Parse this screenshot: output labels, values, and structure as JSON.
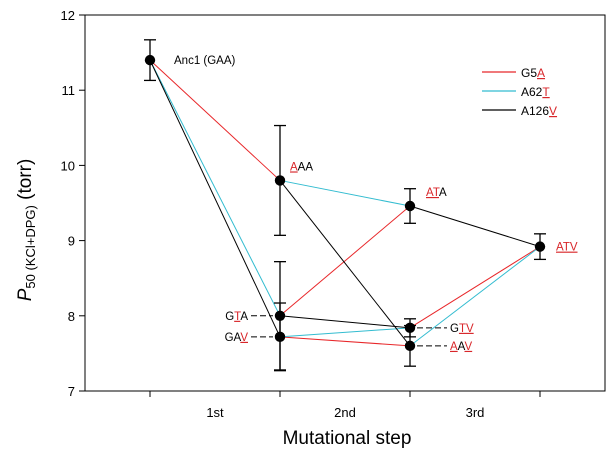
{
  "chart_data": {
    "type": "line",
    "xlabel": "Mutational step",
    "ylabel_main": "P",
    "ylabel_sub": "50 (KCl+DPG)",
    "ylabel_unit": " (torr)",
    "ylim": [
      7,
      12
    ],
    "yticks": [
      7,
      8,
      9,
      10,
      11,
      12
    ],
    "xlim": [
      -0.5,
      3.5
    ],
    "xticks": [
      0,
      1,
      2,
      3
    ],
    "xtick_labels": [
      {
        "text": "1st",
        "x": 0.5
      },
      {
        "text": "2nd",
        "x": 1.5
      },
      {
        "text": "3rd",
        "x": 2.5
      }
    ],
    "colors": {
      "red": "#e8272a",
      "cyan": "#33bcd0",
      "black": "#000000",
      "highlight": "#d8262a"
    },
    "points": [
      {
        "id": "GAA",
        "x": 0,
        "y": 11.4,
        "err": 0.27
      },
      {
        "id": "AAA",
        "x": 1,
        "y": 9.8,
        "err": 0.73
      },
      {
        "id": "GTA",
        "x": 1,
        "y": 8.0,
        "err": 0.72
      },
      {
        "id": "GAV",
        "x": 1,
        "y": 7.72,
        "err": 0.45
      },
      {
        "id": "ATA",
        "x": 2,
        "y": 9.46,
        "err": 0.23
      },
      {
        "id": "GTV",
        "x": 2,
        "y": 7.84,
        "err": 0.12
      },
      {
        "id": "AAV",
        "x": 2,
        "y": 7.6,
        "err": 0.27
      },
      {
        "id": "ATV",
        "x": 3,
        "y": 8.92,
        "err": 0.17
      }
    ],
    "series": [
      {
        "name": "G5A",
        "color": "red",
        "segments": [
          [
            "GAA",
            "AAA"
          ],
          [
            "GTA",
            "ATA"
          ],
          [
            "GAV",
            "AAV"
          ],
          [
            "GTV",
            "ATV"
          ]
        ]
      },
      {
        "name": "A62T",
        "color": "cyan",
        "segments": [
          [
            "GAA",
            "GTA"
          ],
          [
            "AAA",
            "ATA"
          ],
          [
            "GAV",
            "GTV"
          ],
          [
            "AAV",
            "ATV"
          ]
        ]
      },
      {
        "name": "A126V",
        "color": "black",
        "segments": [
          [
            "GAA",
            "GAV"
          ],
          [
            "AAA",
            "AAV"
          ],
          [
            "GTA",
            "GTV"
          ],
          [
            "ATA",
            "ATV"
          ]
        ]
      }
    ],
    "legend": [
      {
        "label": [
          {
            "t": "G5",
            "h": false
          },
          {
            "t": "A",
            "h": true
          }
        ],
        "color": "red"
      },
      {
        "label": [
          {
            "t": "A62",
            "h": false
          },
          {
            "t": "T",
            "h": true
          }
        ],
        "color": "cyan"
      },
      {
        "label": [
          {
            "t": "A126",
            "h": false
          },
          {
            "t": "V",
            "h": true
          }
        ],
        "color": "black"
      }
    ],
    "annotations": [
      {
        "point": "GAA",
        "dx": 24,
        "dy": 0,
        "anchor": "start",
        "parts": [
          {
            "t": "Anc1 (GAA)",
            "h": false
          }
        ]
      },
      {
        "point": "AAA",
        "dx": 10,
        "dy": -14,
        "anchor": "start",
        "parts": [
          {
            "t": "A",
            "h": true
          },
          {
            "t": "AA",
            "h": false
          }
        ]
      },
      {
        "point": "ATA",
        "dx": 16,
        "dy": -14,
        "anchor": "start",
        "parts": [
          {
            "t": "AT",
            "h": true
          },
          {
            "t": "A",
            "h": false
          }
        ]
      },
      {
        "point": "ATV",
        "dx": 16,
        "dy": 0,
        "anchor": "start",
        "parts": [
          {
            "t": "ATV",
            "h": true
          }
        ]
      },
      {
        "point": "GTA",
        "dx": -32,
        "dy": 0,
        "anchor": "end",
        "dashed": true,
        "parts": [
          {
            "t": "G",
            "h": false
          },
          {
            "t": "T",
            "h": true
          },
          {
            "t": "A",
            "h": false
          }
        ]
      },
      {
        "point": "GAV",
        "dx": -32,
        "dy": 0,
        "anchor": "end",
        "dashed": true,
        "parts": [
          {
            "t": "GA",
            "h": false
          },
          {
            "t": "V",
            "h": true
          }
        ]
      },
      {
        "point": "GTV",
        "dx": 40,
        "dy": 0,
        "anchor": "start",
        "dashed": true,
        "parts": [
          {
            "t": "G",
            "h": false
          },
          {
            "t": "TV",
            "h": true
          }
        ]
      },
      {
        "point": "AAV",
        "dx": 40,
        "dy": 0,
        "anchor": "start",
        "dashed": true,
        "parts": [
          {
            "t": "A",
            "h": true
          },
          {
            "t": "A",
            "h": false
          },
          {
            "t": "V",
            "h": true
          }
        ]
      }
    ]
  }
}
